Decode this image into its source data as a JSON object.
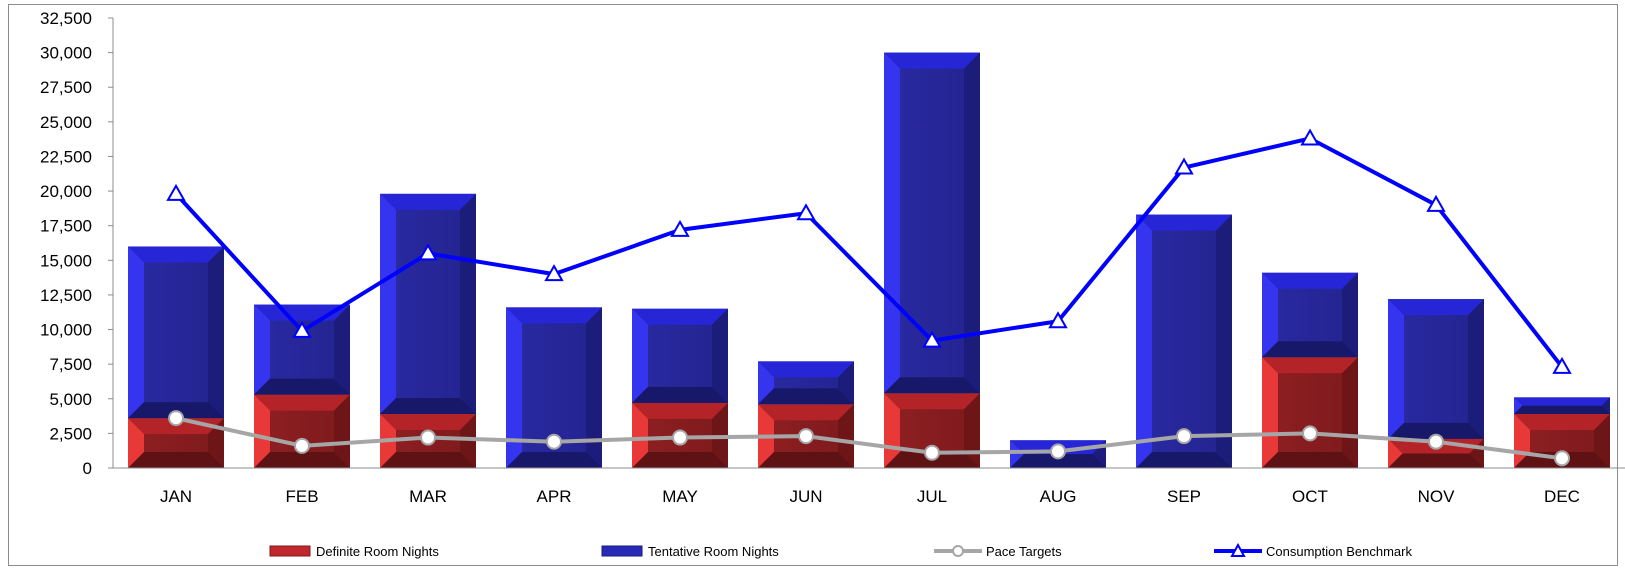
{
  "chart_data": {
    "type": "bar",
    "categories": [
      "JAN",
      "FEB",
      "MAR",
      "APR",
      "MAY",
      "JUN",
      "JUL",
      "AUG",
      "SEP",
      "OCT",
      "NOV",
      "DEC"
    ],
    "series": [
      {
        "name": "Definite Room Nights",
        "kind": "stacked-bar",
        "color": "#c0282d",
        "values": [
          3600,
          5300,
          3900,
          0,
          4700,
          4600,
          5400,
          0,
          0,
          8000,
          2100,
          3900
        ]
      },
      {
        "name": "Tentative Room Nights",
        "kind": "stacked-bar",
        "color": "#2a2ab8",
        "values": [
          12400,
          6500,
          15900,
          11600,
          6800,
          3100,
          24600,
          2000,
          18300,
          6100,
          10100,
          1200
        ]
      },
      {
        "name": "Pace Targets",
        "kind": "line",
        "marker": "circle",
        "color": "#a6a6a6",
        "values": [
          3600,
          1600,
          2200,
          1900,
          2200,
          2300,
          1100,
          1200,
          2300,
          2500,
          1900,
          700
        ]
      },
      {
        "name": "Consumption Benchmark",
        "kind": "line",
        "marker": "triangle",
        "color": "#0000ff",
        "values": [
          19800,
          9900,
          15500,
          14000,
          17200,
          18400,
          9200,
          10600,
          21700,
          23800,
          19000,
          7300
        ]
      }
    ],
    "yticks": [
      "0",
      "2,500",
      "5,000",
      "7,500",
      "10,000",
      "12,500",
      "15,000",
      "17,500",
      "20,000",
      "22,500",
      "25,000",
      "27,500",
      "30,000",
      "32,500"
    ],
    "ylim": [
      0,
      32500
    ],
    "grid": false,
    "legend_position": "bottom"
  }
}
